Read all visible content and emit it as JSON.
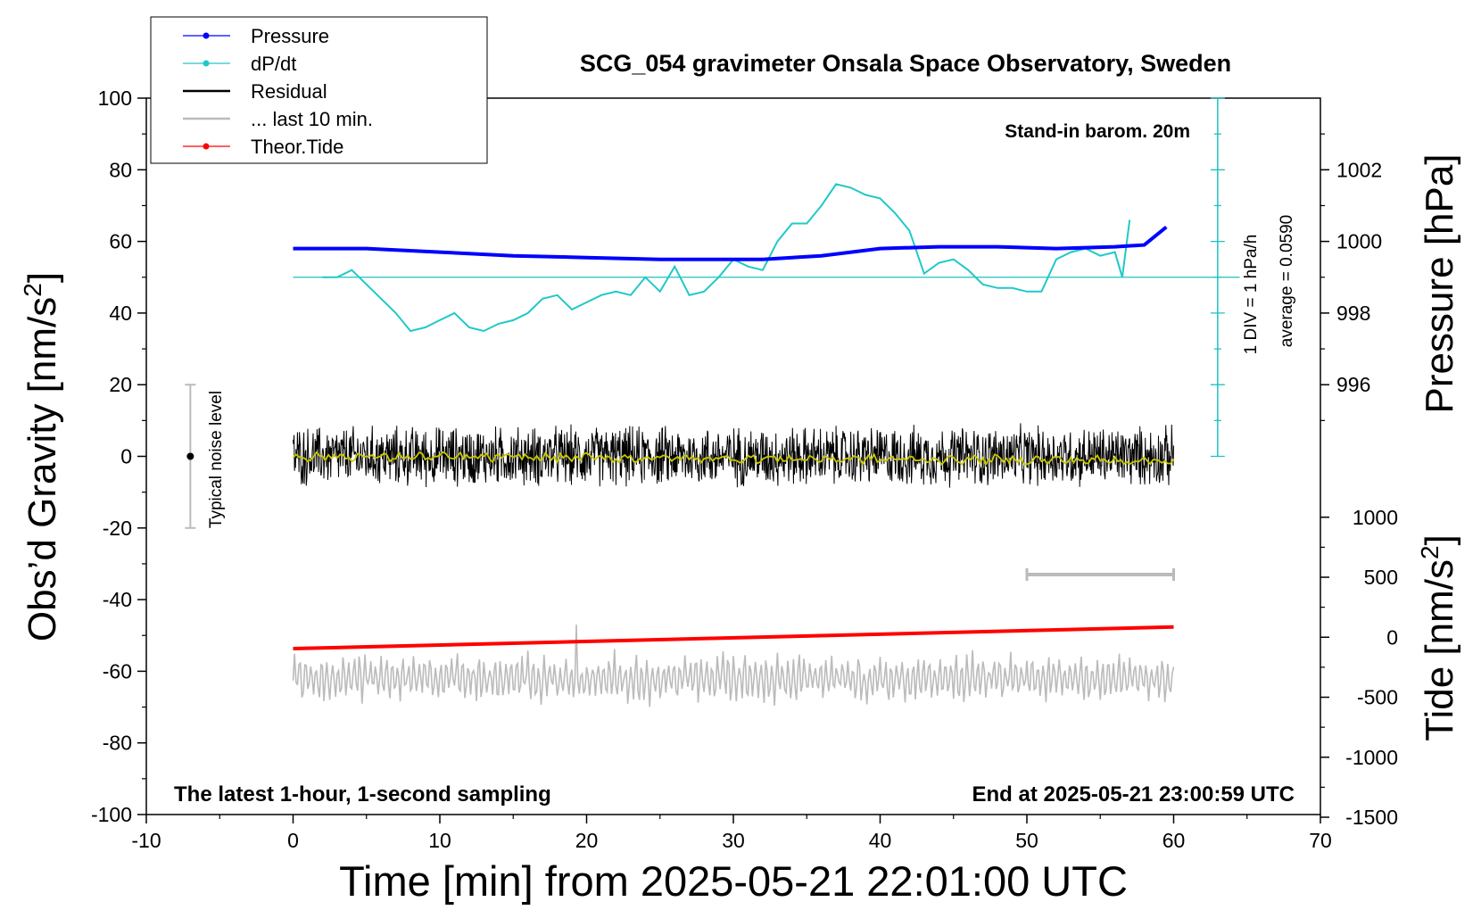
{
  "chart_data": {
    "type": "line",
    "title": "SCG_054 gravimeter Onsala Space Observatory, Sweden",
    "xlabel": "Time [min] from 2025-05-21 22:01:00 UTC",
    "ylabel_left": "Obs’d Gravity [nm/s",
    "ylabel_left_sup": "2",
    "ylabel_left_end": "]",
    "ylabel_pressure": "Pressure [hPa]",
    "ylabel_tide": "Tide [nm/s",
    "ylabel_tide_sup": "2",
    "ylabel_tide_end": "]",
    "xlim": [
      -10,
      70
    ],
    "ylim": [
      -100,
      100
    ],
    "x_ticks": [
      -10,
      0,
      10,
      20,
      30,
      40,
      50,
      60,
      70
    ],
    "y_ticks": [
      100,
      80,
      60,
      40,
      20,
      0,
      -20,
      -40,
      -60,
      -80,
      -100
    ],
    "pressure_ticks": [
      1002,
      1000,
      998,
      996
    ],
    "pressure_lim": [
      994,
      1004
    ],
    "tide_ticks": [
      1000,
      500,
      0,
      -500,
      -1000,
      -1500
    ],
    "tide_lim": [
      -1500,
      1500
    ],
    "legend": [
      {
        "name": "Pressure",
        "color": "#0000ff",
        "marker": true
      },
      {
        "name": "dP/dt",
        "color": "#20c8c8",
        "marker": true
      },
      {
        "name": "Residual",
        "color": "#000000",
        "marker": false
      },
      {
        "name": "... last 10 min.",
        "color": "#bbbbbb",
        "marker": false
      },
      {
        "name": "Theor.Tide",
        "color": "#ff0000",
        "marker": true
      }
    ],
    "legend_position": "top-left",
    "annotations": {
      "barometer": "Stand-in barom. 20m",
      "bottom_left": "The latest 1-hour, 1-second sampling",
      "bottom_right": "End at 2025-05-21 23:00:59 UTC",
      "div_label": "1 DIV = 1 hPa/h",
      "average": "average = 0.0590",
      "noise": "Typical noise level"
    },
    "noise_bar": {
      "x": -7,
      "center": 0,
      "half_range": 20
    },
    "scale_bar_10min": {
      "x": [
        50,
        60
      ],
      "y": -33
    },
    "series": [
      {
        "name": "Pressure",
        "axis": "pressure",
        "x": [
          0,
          5,
          10,
          15,
          20,
          25,
          28,
          32,
          36,
          40,
          44,
          48,
          52,
          56,
          58,
          59.5
        ],
        "values": [
          999.8,
          999.8,
          999.7,
          999.6,
          999.55,
          999.5,
          999.5,
          999.5,
          999.6,
          999.8,
          999.85,
          999.85,
          999.8,
          999.85,
          999.9,
          1000.4
        ]
      },
      {
        "name": "dP/dt",
        "axis": "left",
        "x": [
          2,
          3,
          4,
          5,
          6,
          7,
          8,
          9,
          10,
          11,
          12,
          13,
          14,
          15,
          16,
          17,
          18,
          19,
          20,
          21,
          22,
          23,
          24,
          25,
          26,
          27,
          28,
          29,
          30,
          31,
          32,
          33,
          34,
          35,
          36,
          37,
          38,
          39,
          40,
          41,
          42,
          43,
          44,
          45,
          46,
          47,
          48,
          49,
          50,
          51,
          52,
          53,
          54,
          55,
          56,
          56.5,
          57
        ],
        "values": [
          50,
          50,
          52,
          48,
          44,
          40,
          35,
          36,
          38,
          40,
          36,
          35,
          37,
          38,
          40,
          44,
          45,
          41,
          43,
          45,
          46,
          45,
          50,
          46,
          53,
          45,
          46,
          50,
          55,
          53,
          52,
          60,
          65,
          65,
          70,
          76,
          75,
          73,
          72,
          68,
          63,
          51,
          54,
          55,
          52,
          48,
          47,
          47,
          46,
          46,
          55,
          57,
          58,
          56,
          57,
          50,
          66
        ]
      },
      {
        "name": "Residual",
        "axis": "left",
        "x_range": [
          0,
          60
        ],
        "amplitude": 8,
        "mean": 0
      },
      {
        "name": "... last 10 min.",
        "axis": "left",
        "x_range": [
          0,
          60
        ],
        "mean": -62,
        "amplitude": 6
      },
      {
        "name": "Theor.Tide",
        "axis": "tide",
        "x": [
          0,
          60
        ],
        "values": [
          -95,
          85
        ]
      }
    ]
  }
}
